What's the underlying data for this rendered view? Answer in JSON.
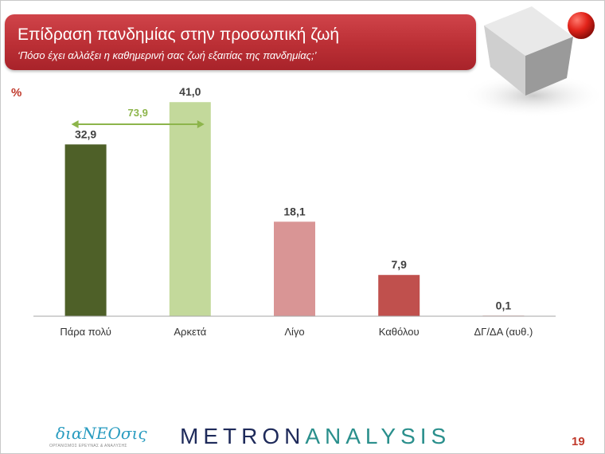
{
  "header": {
    "title": "Επίδραση πανδημίας στην προσωπική ζωή",
    "subtitle": "‘Πόσο έχει αλλάξει η καθημερινή σας ζωή εξαιτίας της πανδημίας;’"
  },
  "unit_label": "%",
  "chart_data": {
    "type": "bar",
    "categories": [
      "Πάρα πολύ",
      "Αρκετά",
      "Λίγο",
      "Καθόλου",
      "ΔΓ/ΔΑ (αυθ.)"
    ],
    "values": [
      32.9,
      41.0,
      18.1,
      7.9,
      0.1
    ],
    "value_labels": [
      "32,9",
      "41,0",
      "18,1",
      "7,9",
      "0,1"
    ],
    "colors": [
      "#4e6028",
      "#c3d99b",
      "#d99595",
      "#c0504d",
      "#c0504d"
    ],
    "annotation": {
      "label": "73,9",
      "spans_categories": [
        0,
        1
      ],
      "color": "#8db54b"
    },
    "ylim": [
      0,
      45
    ],
    "grid": false,
    "legend": "none"
  },
  "footer": {
    "brand": "διαΝΕΟσις",
    "tagline": "ΟΡΓΑΝΙΣΜΟΣ ΕΡΕΥΝΑΣ & ΑΝΑΛΥΣΗΣ",
    "metron_part1": "METRON",
    "metron_part2": "ANALYSIS",
    "page_number": "19"
  }
}
